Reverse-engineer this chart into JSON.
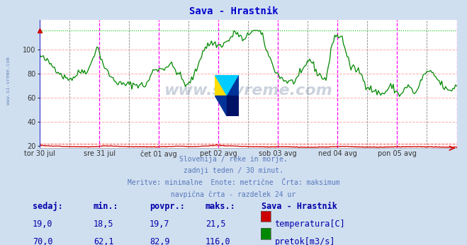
{
  "title": "Sava - Hrastnik",
  "title_color": "#0000cc",
  "bg_color": "#d0dff0",
  "plot_bg_color": "#ffffff",
  "grid_h_color": "#ffaaaa",
  "grid_v_color": "#cccccc",
  "ylim_min": 18,
  "ylim_max": 120,
  "yticks": [
    20,
    40,
    60,
    80,
    100
  ],
  "temp_color": "#cc0000",
  "flow_color": "#008800",
  "vline_day_color": "#ff00ff",
  "vline_mid_color": "#888888",
  "max_flow_line_color": "#00cc00",
  "max_temp_line_color": "#ff4444",
  "subtitle_lines": [
    "Slovenija / reke in morje.",
    "zadnji teden / 30 minut.",
    "Meritve: minimalne  Enote: metrične  Črta: maksimum",
    "navpična črta - razdelek 24 ur"
  ],
  "subtitle_color": "#5577bb",
  "table_header": [
    "sedaj:",
    "min.:",
    "povpr.:",
    "maks.:",
    "Sava - Hrastnik"
  ],
  "table_rows": [
    [
      "19,0",
      "18,5",
      "19,7",
      "21,5",
      "temperatura[C]",
      "#cc0000"
    ],
    [
      "70,0",
      "62,1",
      "82,9",
      "116,0",
      "pretok[m3/s]",
      "#008800"
    ]
  ],
  "table_color": "#0000aa",
  "x_tick_labels": [
    "tor 30 jul",
    "sre 31 jul",
    "čet 01 avg",
    "pet 02 avg",
    "sob 03 avg",
    "ned 04 avg",
    "pon 05 avg"
  ],
  "n_points": 336,
  "temp_max": 21.5,
  "flow_max": 116.0,
  "flow_key": [
    95,
    90,
    84,
    77,
    76,
    82,
    83,
    103,
    84,
    75,
    71,
    71,
    71,
    70,
    84,
    84,
    88,
    80,
    69,
    80,
    100,
    106,
    103,
    107,
    115,
    107,
    117,
    115,
    95,
    80,
    74,
    73,
    80,
    93,
    80,
    75,
    112,
    110,
    85,
    83,
    70,
    65,
    63,
    70,
    62,
    70,
    63,
    80,
    81,
    72,
    65,
    70
  ],
  "temp_key": [
    20.5,
    20.0,
    19.8,
    19.5,
    19.3,
    19.2,
    19.0,
    19.5,
    20.0,
    19.8,
    19.5,
    19.3,
    19.2,
    19.0,
    19.1,
    19.3,
    19.5,
    19.8,
    19.5,
    19.3,
    19.8,
    20.2,
    20.5,
    20.0,
    19.8,
    19.5,
    19.3,
    19.2,
    19.0,
    19.2,
    19.3,
    19.0,
    18.8,
    18.7,
    18.8,
    19.0,
    19.2,
    19.5,
    19.3,
    19.0,
    18.9,
    18.8,
    18.8,
    19.0,
    19.1,
    19.2,
    19.3,
    19.2,
    19.0,
    18.9,
    18.8,
    18.9
  ]
}
